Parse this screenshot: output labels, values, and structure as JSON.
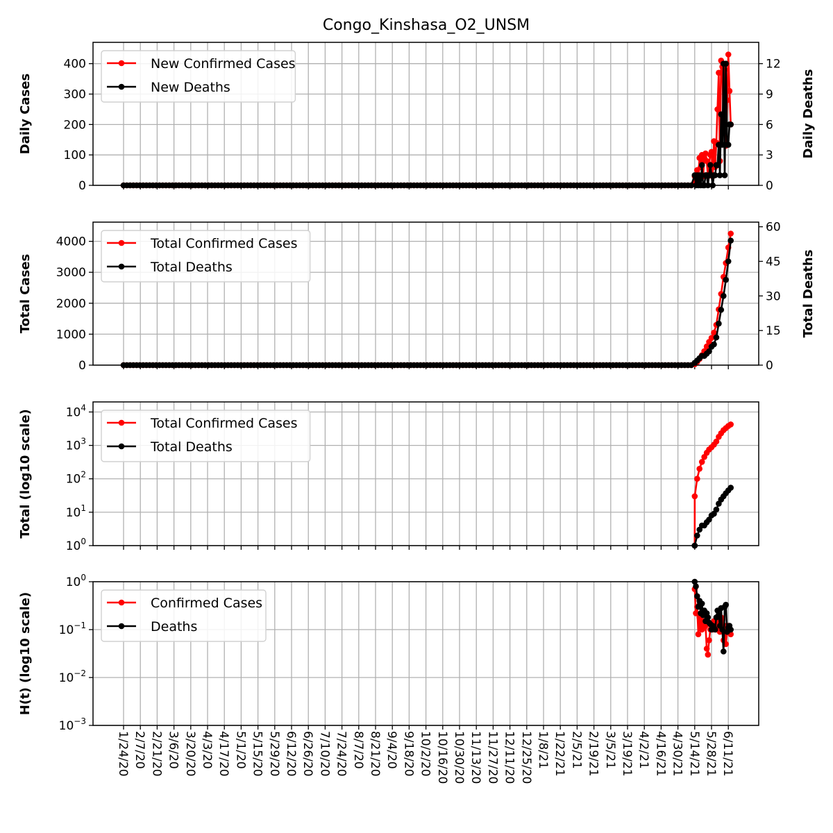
{
  "figure_title": "Congo_Kinshasa_O2_UNSM",
  "colors": {
    "cases": "#ff0000",
    "deaths": "#000000",
    "grid": "#b0b0b0"
  },
  "x_tick_labels": [
    "1/24/20",
    "2/7/20",
    "2/21/20",
    "3/6/20",
    "3/20/20",
    "4/3/20",
    "4/17/20",
    "5/1/20",
    "5/15/20",
    "5/29/20",
    "6/12/20",
    "6/26/20",
    "7/10/20",
    "7/24/20",
    "8/7/20",
    "8/21/20",
    "9/4/20",
    "9/18/20",
    "10/2/20",
    "10/16/20",
    "10/30/20",
    "11/13/20",
    "11/27/20",
    "12/11/20",
    "12/25/20",
    "1/8/21",
    "1/22/21",
    "2/5/21",
    "2/19/21",
    "3/5/21",
    "3/19/21",
    "4/2/21",
    "4/16/21",
    "4/30/21",
    "5/14/21",
    "5/28/21",
    "6/11/21"
  ],
  "chart_data": [
    {
      "type": "line",
      "ylabel": "Daily Cases",
      "ylabel_right": "Daily Deaths",
      "ylim": [
        0,
        470
      ],
      "ylim_right": [
        0,
        14.1
      ],
      "yticks": [
        0,
        100,
        200,
        300,
        400
      ],
      "yticks_right": [
        0,
        3,
        6,
        9,
        12
      ],
      "legend": "upper-left",
      "grid": true,
      "x": [
        "5/14/21",
        "5/15/21",
        "5/16/21",
        "5/17/21",
        "5/18/21",
        "5/19/21",
        "5/20/21",
        "5/21/21",
        "5/22/21",
        "5/23/21",
        "5/24/21",
        "5/25/21",
        "5/26/21",
        "5/27/21",
        "5/28/21",
        "5/29/21",
        "5/30/21",
        "5/31/21",
        "6/1/21",
        "6/2/21",
        "6/3/21",
        "6/4/21",
        "6/5/21",
        "6/6/21",
        "6/7/21",
        "6/8/21",
        "6/9/21",
        "6/10/21",
        "6/11/21",
        "6/12/21",
        "6/13/21"
      ],
      "series": [
        {
          "name": "New Confirmed Cases",
          "axis": "left",
          "color": "#ff0000",
          "flat_zero_from": "1/24/20",
          "values": [
            30,
            10,
            50,
            20,
            90,
            60,
            100,
            30,
            90,
            105,
            80,
            30,
            70,
            100,
            110,
            30,
            145,
            60,
            140,
            250,
            370,
            80,
            410,
            390,
            200,
            380,
            130,
            280,
            430,
            310,
            200
          ]
        },
        {
          "name": "New Deaths",
          "axis": "right",
          "color": "#000000",
          "flat_zero_from": "1/24/20",
          "values": [
            1,
            0,
            1,
            0,
            1,
            0,
            2,
            0,
            0,
            1,
            1,
            0,
            1,
            2,
            1,
            0,
            1,
            1,
            2,
            2,
            4,
            1,
            7,
            4,
            12,
            1,
            12,
            4,
            4,
            6,
            6
          ]
        }
      ]
    },
    {
      "type": "line",
      "ylabel": "Total Cases",
      "ylabel_right": "Total Deaths",
      "ylim": [
        0,
        4620
      ],
      "ylim_right": [
        0,
        62
      ],
      "yticks": [
        0,
        1000,
        2000,
        3000,
        4000
      ],
      "yticks_right": [
        0,
        15,
        30,
        45,
        60
      ],
      "legend": "upper-left",
      "grid": true,
      "x": [
        "5/14/21",
        "5/16/21",
        "5/18/21",
        "5/20/21",
        "5/22/21",
        "5/24/21",
        "5/26/21",
        "5/28/21",
        "5/30/21",
        "6/1/21",
        "6/3/21",
        "6/5/21",
        "6/7/21",
        "6/9/21",
        "6/11/21",
        "6/13/21"
      ],
      "series": [
        {
          "name": "Total Confirmed Cases",
          "axis": "left",
          "color": "#ff0000",
          "flat_zero_from": "1/24/20",
          "values": [
            30,
            100,
            200,
            320,
            450,
            600,
            750,
            880,
            1050,
            1300,
            1800,
            2300,
            2850,
            3300,
            3800,
            4250
          ]
        },
        {
          "name": "Total Deaths",
          "axis": "right",
          "color": "#000000",
          "flat_zero_from": "1/24/20",
          "values": [
            1,
            2,
            3,
            4,
            4,
            5,
            6,
            8,
            9,
            12,
            18,
            24,
            30,
            37,
            45,
            54
          ]
        }
      ]
    },
    {
      "type": "line",
      "ylabel": "Total (log10 scale)",
      "yscale": "log",
      "ylim": [
        1,
        20000
      ],
      "yticks": [
        1,
        10,
        100,
        1000,
        10000
      ],
      "ytick_base": "10",
      "ytick_exponents": [
        "0",
        "1",
        "2",
        "3",
        "4"
      ],
      "legend": "upper-left",
      "grid": true,
      "x": [
        "5/14/21",
        "5/16/21",
        "5/18/21",
        "5/20/21",
        "5/22/21",
        "5/24/21",
        "5/26/21",
        "5/28/21",
        "5/30/21",
        "6/1/21",
        "6/3/21",
        "6/5/21",
        "6/7/21",
        "6/9/21",
        "6/11/21",
        "6/13/21"
      ],
      "series": [
        {
          "name": "Total Confirmed Cases",
          "color": "#ff0000",
          "values": [
            30,
            100,
            200,
            320,
            450,
            600,
            750,
            880,
            1050,
            1300,
            1800,
            2300,
            2850,
            3300,
            3800,
            4250
          ]
        },
        {
          "name": "Total Deaths",
          "color": "#000000",
          "values": [
            1,
            2,
            3,
            4,
            4,
            5,
            6,
            8,
            9,
            12,
            18,
            24,
            30,
            37,
            45,
            54
          ]
        }
      ]
    },
    {
      "type": "line",
      "ylabel": "H(t) (log10 scale)",
      "yscale": "log",
      "ylim": [
        0.001,
        1
      ],
      "yticks": [
        0.001,
        0.01,
        0.1,
        1
      ],
      "ytick_base": "10",
      "ytick_exponents": [
        "−3",
        "−2",
        "−1",
        "0"
      ],
      "legend": "upper-left",
      "grid": true,
      "x": [
        "5/14/21",
        "5/15/21",
        "5/16/21",
        "5/17/21",
        "5/18/21",
        "5/19/21",
        "5/20/21",
        "5/21/21",
        "5/22/21",
        "5/23/21",
        "5/24/21",
        "5/25/21",
        "5/26/21",
        "5/27/21",
        "5/28/21",
        "5/29/21",
        "5/30/21",
        "5/31/21",
        "6/1/21",
        "6/2/21",
        "6/3/21",
        "6/4/21",
        "6/5/21",
        "6/6/21",
        "6/7/21",
        "6/8/21",
        "6/9/21",
        "6/10/21",
        "6/11/21",
        "6/12/21",
        "6/13/21"
      ],
      "series": [
        {
          "name": "Confirmed Cases",
          "color": "#ff0000",
          "values": [
            0.7,
            0.22,
            0.3,
            0.08,
            0.18,
            0.12,
            0.1,
            0.15,
            0.11,
            0.12,
            0.04,
            0.03,
            0.06,
            0.1,
            0.12,
            0.1,
            0.15,
            0.12,
            0.1,
            0.13,
            0.2,
            0.09,
            0.18,
            0.16,
            0.06,
            0.12,
            0.05,
            0.09,
            0.12,
            0.1,
            0.08
          ]
        },
        {
          "name": "Deaths",
          "color": "#000000",
          "values": [
            1.0,
            0.8,
            0.5,
            0.3,
            0.4,
            0.22,
            0.35,
            0.2,
            0.25,
            0.15,
            0.22,
            0.18,
            0.14,
            0.13,
            0.1,
            0.12,
            0.11,
            0.1,
            0.18,
            0.25,
            0.2,
            0.12,
            0.28,
            0.1,
            0.035,
            0.3,
            0.33,
            0.09,
            0.11,
            0.12,
            0.1
          ]
        }
      ]
    }
  ]
}
